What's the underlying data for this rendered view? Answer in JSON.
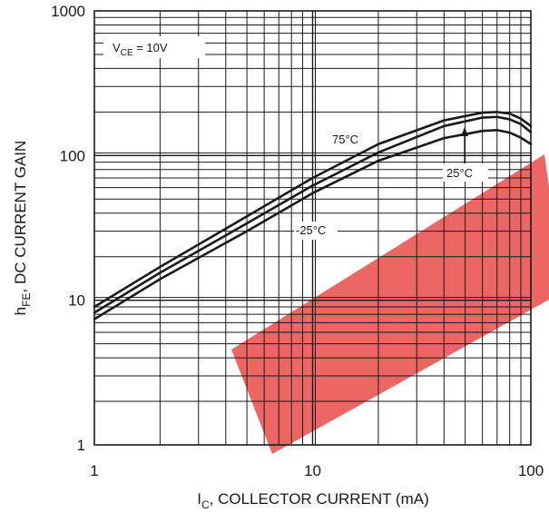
{
  "chart_data": {
    "type": "line",
    "x_scale": "log",
    "y_scale": "log",
    "xlim": [
      1,
      100
    ],
    "ylim": [
      1,
      1000
    ],
    "x_ticks": [
      {
        "value": 1,
        "label": "1"
      },
      {
        "value": 10,
        "label": "10"
      },
      {
        "value": 100,
        "label": "100"
      }
    ],
    "y_ticks": [
      {
        "value": 1,
        "label": "1"
      },
      {
        "value": 10,
        "label": "10"
      },
      {
        "value": 100,
        "label": "100"
      },
      {
        "value": 1000,
        "label": "1000"
      }
    ],
    "xlabel": {
      "main": "I",
      "sub": "C",
      "rest": ", COLLECTOR CURRENT (mA)"
    },
    "ylabel": {
      "main": "h",
      "sub": "FE",
      "rest": ", DC CURRENT GAIN"
    },
    "grid": true,
    "condition": {
      "main": "V",
      "sub": "CE",
      "rest": " = 10V"
    },
    "series": [
      {
        "name": "75°C",
        "x": [
          1,
          2,
          5,
          10,
          20,
          40,
          60,
          70,
          80,
          90,
          100
        ],
        "y": [
          9.0,
          17,
          38,
          70,
          120,
          175,
          198,
          200,
          195,
          180,
          160
        ]
      },
      {
        "name": "25°C",
        "x": [
          1,
          2,
          5,
          10,
          20,
          40,
          60,
          70,
          80,
          90,
          100
        ],
        "y": [
          8.2,
          15.5,
          34,
          62,
          105,
          160,
          183,
          185,
          178,
          165,
          145
        ]
      },
      {
        "name": "-25°C",
        "x": [
          1,
          2,
          5,
          10,
          20,
          40,
          60,
          70,
          80,
          90,
          100
        ],
        "y": [
          7.4,
          14,
          30,
          55,
          92,
          132,
          148,
          150,
          144,
          133,
          120
        ]
      }
    ],
    "annotations": [
      {
        "text": "75°C",
        "series": "75°C"
      },
      {
        "text": "25°C",
        "series": "25°C"
      },
      {
        "text": "-25°C",
        "series": "-25°C"
      }
    ]
  },
  "colors": {
    "line": "#1a1a1a",
    "grid": "#1a1a1a",
    "watermark": "#e53935"
  }
}
